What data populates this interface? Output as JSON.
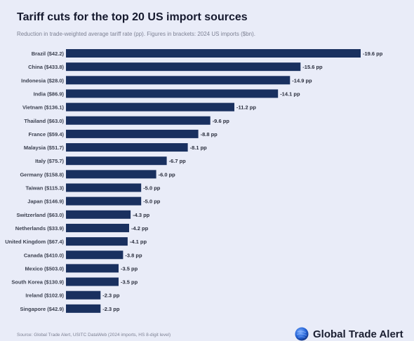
{
  "title": "Tariff cuts for the top 20 US import sources",
  "subtitle": "Reduction in trade-weighted average tariff rate (pp). Figures in brackets: 2024 US imports ($bn).",
  "source": "Source: Global Trade Alert, USITC DataWeb (2024 imports, HS 8-digit level)",
  "brand": "Global Trade Alert",
  "colors": {
    "bar": "#19305f",
    "background": "#e9ecf8",
    "brand": "#2463d6"
  },
  "chart_data": {
    "type": "bar",
    "orientation": "horizontal",
    "value_suffix": " pp",
    "categories": [
      "Brazil ($42.2)",
      "China ($433.8)",
      "Indonesia ($28.0)",
      "India ($86.9)",
      "Vietnam ($136.1)",
      "Thailand ($63.0)",
      "France ($59.4)",
      "Malaysia ($51.7)",
      "Italy ($75.7)",
      "Germany ($158.8)",
      "Taiwan ($115.3)",
      "Japan ($146.9)",
      "Switzerland ($63.0)",
      "Netherlands ($33.9)",
      "United Kingdom ($67.4)",
      "Canada ($410.0)",
      "Mexico ($503.0)",
      "South Korea ($130.9)",
      "Ireland ($102.9)",
      "Singapore ($42.9)"
    ],
    "values": [
      -19.6,
      -15.6,
      -14.9,
      -14.1,
      -11.2,
      -9.6,
      -8.8,
      -8.1,
      -6.7,
      -6.0,
      -5.0,
      -5.0,
      -4.3,
      -4.2,
      -4.1,
      -3.8,
      -3.5,
      -3.5,
      -2.3,
      -2.3
    ],
    "title": "Tariff cuts for the top 20 US import sources",
    "xlabel": "",
    "ylabel": "",
    "grid": false,
    "legend": "none"
  }
}
